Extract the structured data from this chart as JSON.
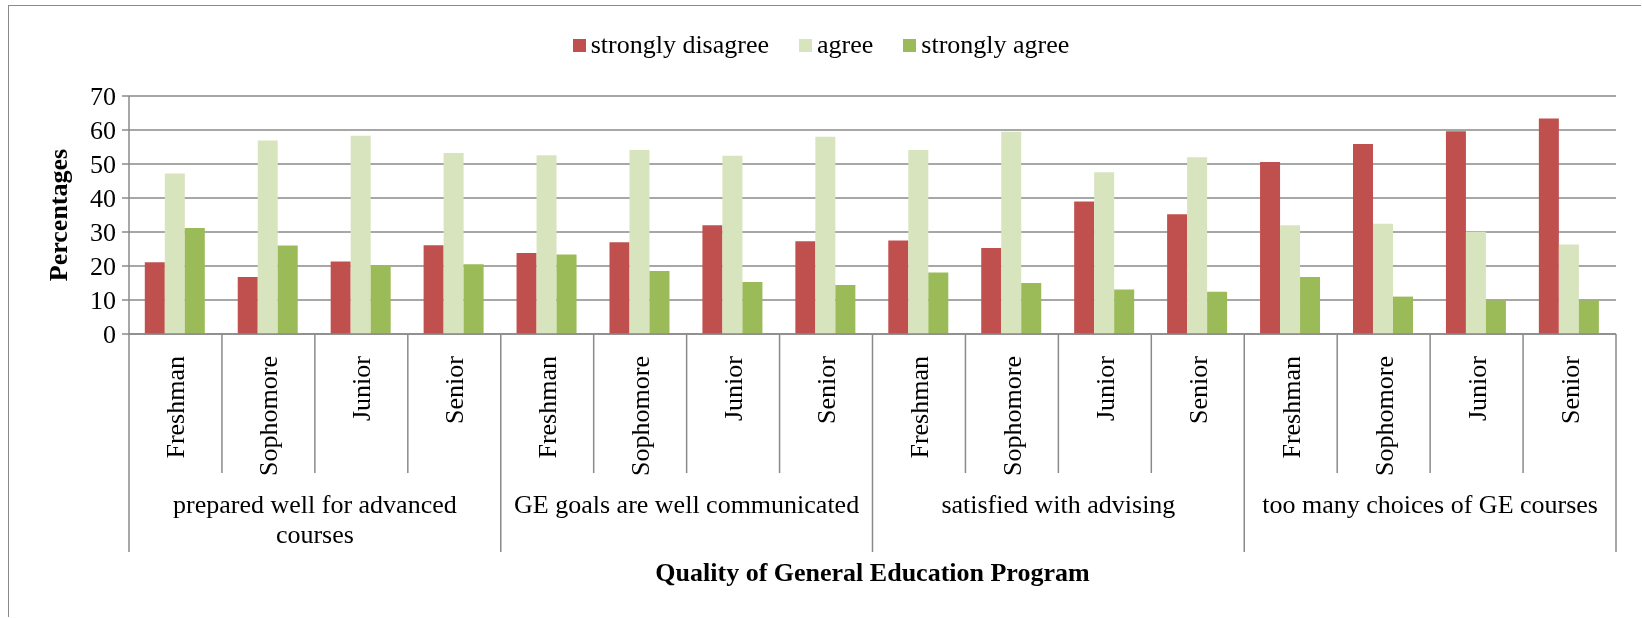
{
  "chart_data": {
    "type": "bar",
    "xlabel": "Quality of General Education Program",
    "ylabel": "Percentages",
    "categories": [
      "Freshman",
      "Sophomore",
      "Junior",
      "Senior",
      "Freshman",
      "Sophomore",
      "Junior",
      "Senior",
      "Freshman",
      "Sophomore",
      "Junior",
      "Senior",
      "Freshman",
      "Sophomore",
      "Junior",
      "Senior"
    ],
    "series": [
      {
        "name": "strongly disagree",
        "color": "#c0504d",
        "values": [
          21.1,
          16.8,
          21.3,
          26.1,
          23.8,
          27.0,
          32.0,
          27.3,
          27.5,
          25.3,
          39.0,
          35.2,
          50.6,
          55.9,
          59.6,
          63.4
        ]
      },
      {
        "name": "agree",
        "color": "#d7e4bd",
        "values": [
          47.2,
          56.9,
          58.3,
          53.2,
          52.6,
          54.1,
          52.4,
          58.0,
          54.1,
          59.5,
          47.6,
          52.0,
          32.0,
          32.4,
          30.1,
          26.3
        ]
      },
      {
        "name": "strongly agree",
        "color": "#9bbb59",
        "values": [
          31.2,
          26.0,
          20.0,
          20.5,
          23.4,
          18.5,
          15.3,
          14.4,
          18.1,
          15.0,
          13.1,
          12.4,
          16.8,
          11.0,
          9.9,
          9.9
        ]
      }
    ],
    "ylim": [
      0,
      70
    ],
    "yticks": [
      0,
      10,
      20,
      30,
      40,
      50,
      60,
      70
    ],
    "grid": "y",
    "legend": "top",
    "annotations": [
      "prepared well for advanced courses",
      "GE goals are well communicated",
      "satisfied with advising",
      "too many choices of GE courses"
    ]
  }
}
